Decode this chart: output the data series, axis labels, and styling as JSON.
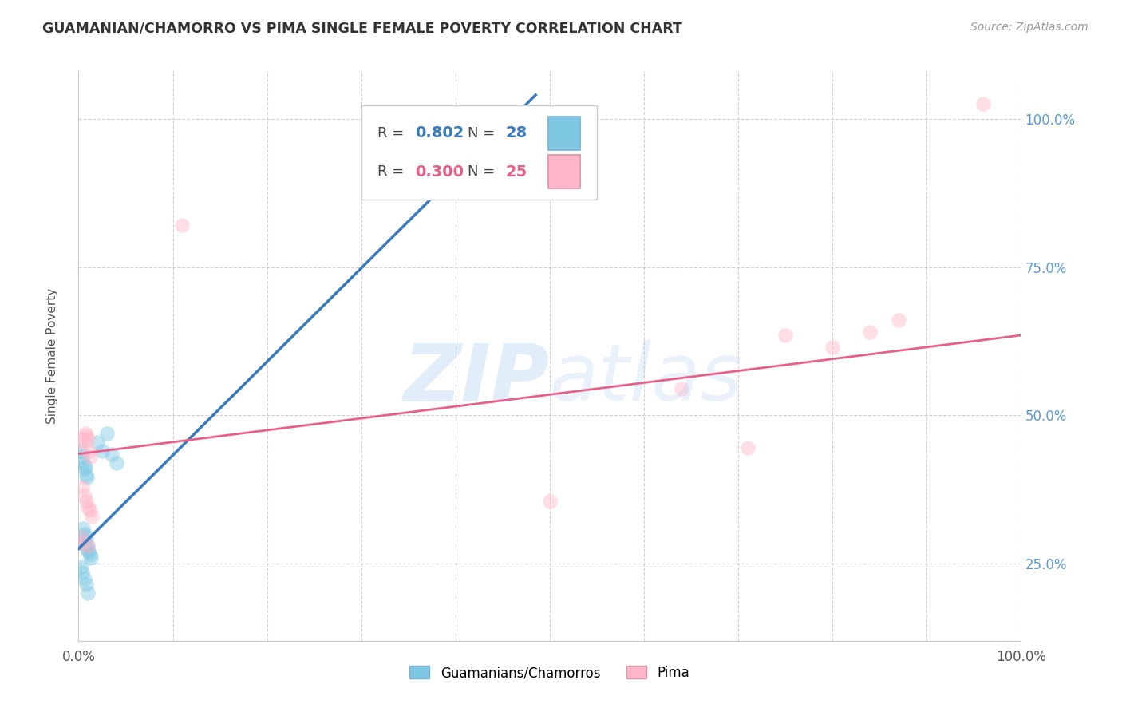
{
  "title": "GUAMANIAN/CHAMORRO VS PIMA SINGLE FEMALE POVERTY CORRELATION CHART",
  "source": "Source: ZipAtlas.com",
  "ylabel": "Single Female Poverty",
  "xlim": [
    0.0,
    1.0
  ],
  "ylim": [
    0.12,
    1.08
  ],
  "blue_color": "#7ec8e3",
  "pink_color": "#ffb6c8",
  "blue_line_color": "#3a7abf",
  "pink_line_color": "#e8608a",
  "blue_points": [
    [
      0.003,
      0.295
    ],
    [
      0.004,
      0.285
    ],
    [
      0.005,
      0.31
    ],
    [
      0.006,
      0.3
    ],
    [
      0.007,
      0.285
    ],
    [
      0.008,
      0.295
    ],
    [
      0.009,
      0.275
    ],
    [
      0.01,
      0.28
    ],
    [
      0.011,
      0.27
    ],
    [
      0.012,
      0.265
    ],
    [
      0.013,
      0.26
    ],
    [
      0.003,
      0.44
    ],
    [
      0.004,
      0.43
    ],
    [
      0.005,
      0.42
    ],
    [
      0.006,
      0.41
    ],
    [
      0.007,
      0.415
    ],
    [
      0.008,
      0.4
    ],
    [
      0.009,
      0.395
    ],
    [
      0.02,
      0.455
    ],
    [
      0.025,
      0.44
    ],
    [
      0.03,
      0.47
    ],
    [
      0.035,
      0.435
    ],
    [
      0.04,
      0.42
    ],
    [
      0.003,
      0.245
    ],
    [
      0.004,
      0.235
    ],
    [
      0.006,
      0.225
    ],
    [
      0.008,
      0.215
    ],
    [
      0.01,
      0.2
    ]
  ],
  "pink_points": [
    [
      0.003,
      0.46
    ],
    [
      0.005,
      0.455
    ],
    [
      0.007,
      0.47
    ],
    [
      0.008,
      0.465
    ],
    [
      0.01,
      0.46
    ],
    [
      0.011,
      0.44
    ],
    [
      0.012,
      0.43
    ],
    [
      0.004,
      0.38
    ],
    [
      0.006,
      0.365
    ],
    [
      0.008,
      0.355
    ],
    [
      0.01,
      0.345
    ],
    [
      0.012,
      0.34
    ],
    [
      0.014,
      0.33
    ],
    [
      0.003,
      0.295
    ],
    [
      0.005,
      0.285
    ],
    [
      0.01,
      0.28
    ],
    [
      0.11,
      0.82
    ],
    [
      0.5,
      0.355
    ],
    [
      0.64,
      0.545
    ],
    [
      0.71,
      0.445
    ],
    [
      0.75,
      0.635
    ],
    [
      0.8,
      0.615
    ],
    [
      0.84,
      0.64
    ],
    [
      0.87,
      0.66
    ],
    [
      0.96,
      1.025
    ]
  ],
  "blue_line": {
    "x0": 0.0,
    "y0": 0.275,
    "x1": 0.485,
    "y1": 1.04
  },
  "pink_line": {
    "x0": 0.0,
    "y0": 0.435,
    "x1": 1.0,
    "y1": 0.635
  }
}
